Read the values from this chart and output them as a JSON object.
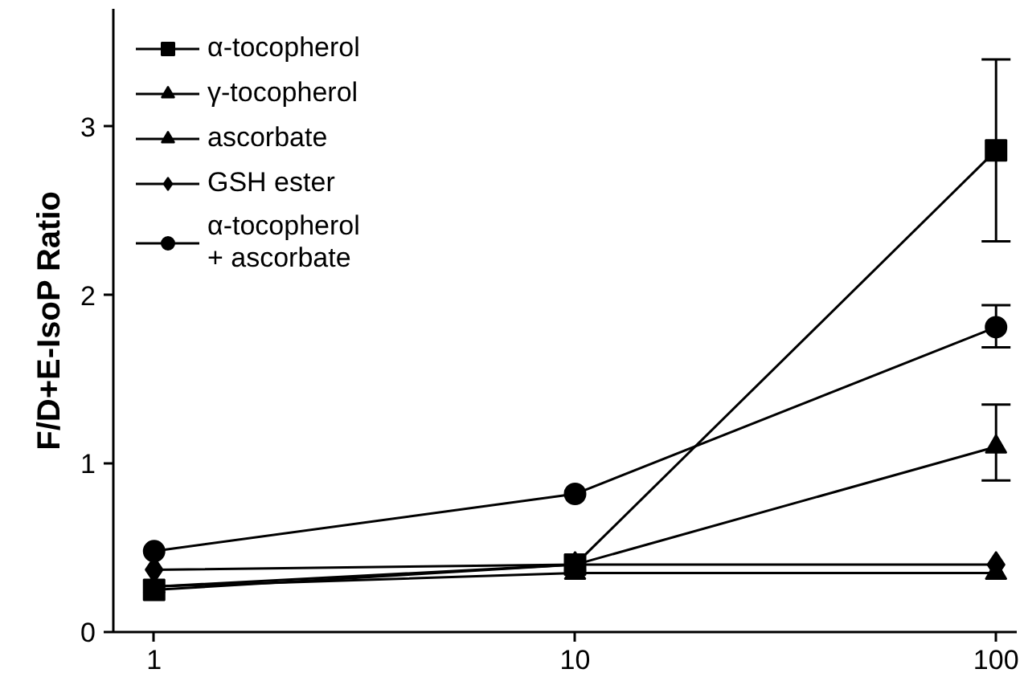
{
  "chart_data": {
    "type": "line",
    "ylabel": "F/D+E-IsoP Ratio",
    "x": [
      1,
      10,
      100
    ],
    "xlim": [
      0.8,
      112
    ],
    "xticks": [
      1,
      10,
      100
    ],
    "ylim": [
      0,
      3.7
    ],
    "yticks": [
      0,
      1,
      2,
      3
    ],
    "log": "x",
    "grid": false,
    "legend": "top left",
    "line_style": "solid",
    "series": [
      {
        "name": "α-tocopherol",
        "color": "#000000",
        "marker": "square",
        "values": [
          0.25,
          0.4,
          2.86
        ],
        "errors": [
          null,
          null,
          [
            2.32,
            3.4
          ]
        ]
      },
      {
        "name": "γ-tocopherol",
        "color": "#000000",
        "marker": "triangle",
        "values": [
          0.27,
          0.4,
          1.1
        ],
        "errors": [
          null,
          null,
          [
            0.9,
            1.35
          ]
        ]
      },
      {
        "name": "ascorbate",
        "color": "#000000",
        "marker": "triangle",
        "values": [
          0.27,
          0.35,
          0.35
        ]
      },
      {
        "name": "GSH ester",
        "color": "#000000",
        "marker": "diamond",
        "values": [
          0.37,
          0.4,
          0.4
        ]
      },
      {
        "name": "α-tocopherol\n+ ascorbate",
        "color": "#000000",
        "marker": "circle",
        "values": [
          0.48,
          0.82,
          1.81
        ],
        "errors": [
          null,
          null,
          [
            1.69,
            1.94
          ]
        ]
      }
    ]
  }
}
